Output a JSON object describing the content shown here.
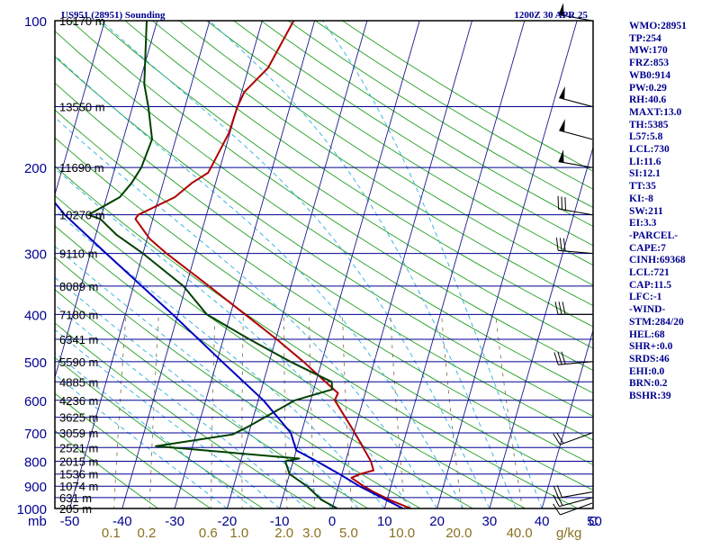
{
  "title_left": "US951 (28951) Sounding",
  "title_right": "1200Z 30 APR 25",
  "colors": {
    "border": "#000000",
    "isobar": "#000090",
    "isotherm": "#1a1a8c",
    "dry_adiabat": "#22a022",
    "moist_adiabat": "#2aaee0",
    "mixing_ratio": "#7a6a3a",
    "temperature": "#b00000",
    "dewpoint": "#004000",
    "parcel": "#0000c0",
    "text": "#000090",
    "mixing_label": "#8a7020"
  },
  "chart_data": {
    "type": "line",
    "subtype": "skew-T log-P sounding",
    "title": "US951 (28951) Sounding",
    "time": "1200Z 30 APR 25",
    "y_scale": "log",
    "ylim": [
      1000,
      100
    ],
    "xlim": [
      -50,
      50
    ],
    "pressure_ticks": [
      "100",
      "200",
      "300",
      "400",
      "500",
      "600",
      "700",
      "800",
      "900",
      "1000"
    ],
    "temperature_ticks": [
      "-50",
      "-40",
      "-30",
      "-20",
      "-10",
      "0",
      "10",
      "20",
      "30",
      "40",
      "50"
    ],
    "x_axis_prefix": "mb",
    "x_axis_unit": "C",
    "mixing_ratio_unit": "g/kg",
    "mixing_ratio_labels": [
      "0.1",
      "0.2",
      "0.6",
      "1.0",
      "2.0",
      "3.0",
      "5.0",
      "10.0",
      "20.0",
      "40.0"
    ],
    "height_labels": [
      {
        "p": 100,
        "label": "16170 m"
      },
      {
        "p": 150,
        "label": "13550 m"
      },
      {
        "p": 200,
        "label": "11690 m"
      },
      {
        "p": 250,
        "label": "10270 m"
      },
      {
        "p": 300,
        "label": "9110 m"
      },
      {
        "p": 350,
        "label": "8089 m"
      },
      {
        "p": 400,
        "label": "7180 m"
      },
      {
        "p": 450,
        "label": "6341 m"
      },
      {
        "p": 500,
        "label": "5590 m"
      },
      {
        "p": 550,
        "label": "4885 m"
      },
      {
        "p": 600,
        "label": "4236 m"
      },
      {
        "p": 650,
        "label": "3625 m"
      },
      {
        "p": 700,
        "label": "3059 m"
      },
      {
        "p": 750,
        "label": "2521 m"
      },
      {
        "p": 800,
        "label": "2015 m"
      },
      {
        "p": 850,
        "label": "1536 m"
      },
      {
        "p": 900,
        "label": "1074 m"
      },
      {
        "p": 950,
        "label": "631 m"
      },
      {
        "p": 1000,
        "label": "205 m"
      }
    ],
    "series": [
      {
        "key": "temperature",
        "color": "#b00000",
        "points": [
          [
            1000,
            15.0
          ],
          [
            960,
            10.5
          ],
          [
            925,
            7.0
          ],
          [
            900,
            4.8
          ],
          [
            865,
            2.0
          ],
          [
            850,
            3.5
          ],
          [
            835,
            5.8
          ],
          [
            800,
            4.8
          ],
          [
            700,
            0.2
          ],
          [
            600,
            -5.4
          ],
          [
            580,
            -5.2
          ],
          [
            550,
            -8.2
          ],
          [
            500,
            -13.5
          ],
          [
            450,
            -19.8
          ],
          [
            400,
            -27.2
          ],
          [
            350,
            -35.6
          ],
          [
            300,
            -45.5
          ],
          [
            280,
            -49.5
          ],
          [
            255,
            -53.3
          ],
          [
            250,
            -53.0
          ],
          [
            230,
            -47.0
          ],
          [
            215,
            -44.5
          ],
          [
            205,
            -42.0
          ],
          [
            195,
            -41.5
          ],
          [
            170,
            -40.2
          ],
          [
            150,
            -40.0
          ],
          [
            140,
            -39.5
          ],
          [
            125,
            -36.3
          ],
          [
            100,
            -34.0
          ]
        ]
      },
      {
        "key": "dewpoint",
        "color": "#004000",
        "points": [
          [
            1000,
            1.0
          ],
          [
            960,
            -2.5
          ],
          [
            900,
            -6.0
          ],
          [
            850,
            -10.0
          ],
          [
            800,
            -11.5
          ],
          [
            790,
            -9.0
          ],
          [
            745,
            -37.0
          ],
          [
            705,
            -23.0
          ],
          [
            680,
            -20.5
          ],
          [
            600,
            -13.0
          ],
          [
            570,
            -6.5
          ],
          [
            550,
            -7.0
          ],
          [
            500,
            -16.0
          ],
          [
            450,
            -25.0
          ],
          [
            400,
            -34.5
          ],
          [
            350,
            -40.5
          ],
          [
            300,
            -50.0
          ],
          [
            275,
            -56.0
          ],
          [
            255,
            -60.0
          ],
          [
            250,
            -62.5
          ],
          [
            230,
            -57.5
          ],
          [
            215,
            -56.0
          ],
          [
            200,
            -55.0
          ],
          [
            175,
            -54.5
          ],
          [
            150,
            -57.0
          ],
          [
            135,
            -59.0
          ],
          [
            100,
            -62.0
          ]
        ]
      },
      {
        "key": "parcel",
        "color": "#0000c0",
        "points": [
          [
            1000,
            13.5
          ],
          [
            900,
            4.0
          ],
          [
            850,
            -0.5
          ],
          [
            800,
            -5.5
          ],
          [
            760,
            -10.0
          ],
          [
            700,
            -12.0
          ],
          [
            600,
            -19.0
          ],
          [
            500,
            -29.0
          ],
          [
            400,
            -41.0
          ],
          [
            300,
            -57.0
          ],
          [
            250,
            -67.0
          ],
          [
            200,
            -77.0
          ],
          [
            150,
            -89.0
          ],
          [
            120,
            -97.0
          ],
          [
            100,
            -103.0
          ]
        ]
      }
    ],
    "wind_barbs": [
      {
        "p": 1000,
        "dir": 270,
        "kt": 0
      },
      {
        "p": 975,
        "dir": 250,
        "kt": 10
      },
      {
        "p": 950,
        "dir": 255,
        "kt": 20
      },
      {
        "p": 925,
        "dir": 260,
        "kt": 20
      },
      {
        "p": 700,
        "dir": 250,
        "kt": 20
      },
      {
        "p": 500,
        "dir": 265,
        "kt": 30
      },
      {
        "p": 400,
        "dir": 270,
        "kt": 30
      },
      {
        "p": 300,
        "dir": 275,
        "kt": 30
      },
      {
        "p": 250,
        "dir": 280,
        "kt": 30
      },
      {
        "p": 200,
        "dir": 280,
        "kt": 50
      },
      {
        "p": 175,
        "dir": 285,
        "kt": 50
      },
      {
        "p": 150,
        "dir": 285,
        "kt": 50
      },
      {
        "p": 100,
        "dir": 280,
        "kt": 50
      }
    ]
  },
  "stats": [
    "WMO:28951",
    "TP:254",
    "MW:170",
    "FRZ:853",
    "WB0:914",
    "PW:0.29",
    "RH:40.6",
    "MAXT:13.0",
    "TH:5385",
    "L57:5.8",
    "LCL:730",
    "LI:11.6",
    "SI:12.1",
    "TT:35",
    "KI:-8",
    "SW:211",
    "EI:3.3",
    "-PARCEL-",
    "CAPE:7",
    "CINH:69368",
    "LCL:721",
    "CAP:11.5",
    "LFC:-1",
    "-WIND-",
    "STM:284/20",
    "HEL:68",
    "SHR+:0.0",
    "SRDS:46",
    "EHI:0.0",
    "BRN:0.2",
    "BSHR:39"
  ]
}
